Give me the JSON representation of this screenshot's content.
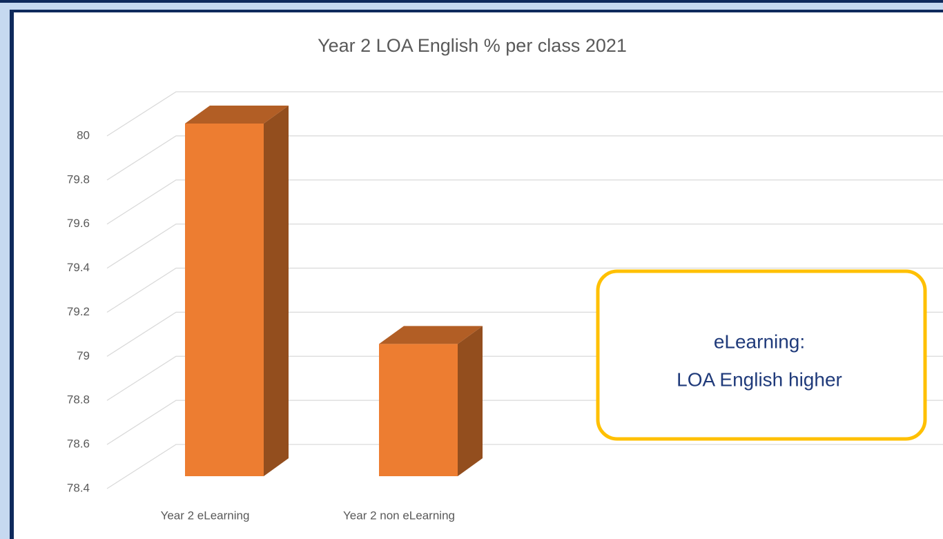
{
  "chart_data": {
    "type": "bar3d",
    "title": "Year 2 LOA English % per class 2021",
    "categories": [
      "Year 2 eLearning",
      "Year 2 non eLearning"
    ],
    "values": [
      80,
      79
    ],
    "color": "#ed7d31",
    "ylim": [
      78.4,
      80
    ],
    "yticks": [
      78.4,
      78.6,
      78.8,
      79,
      79.2,
      79.4,
      79.6,
      79.8,
      80
    ],
    "grid": true,
    "annotation": [
      "eLearning:",
      "LOA English higher"
    ]
  }
}
